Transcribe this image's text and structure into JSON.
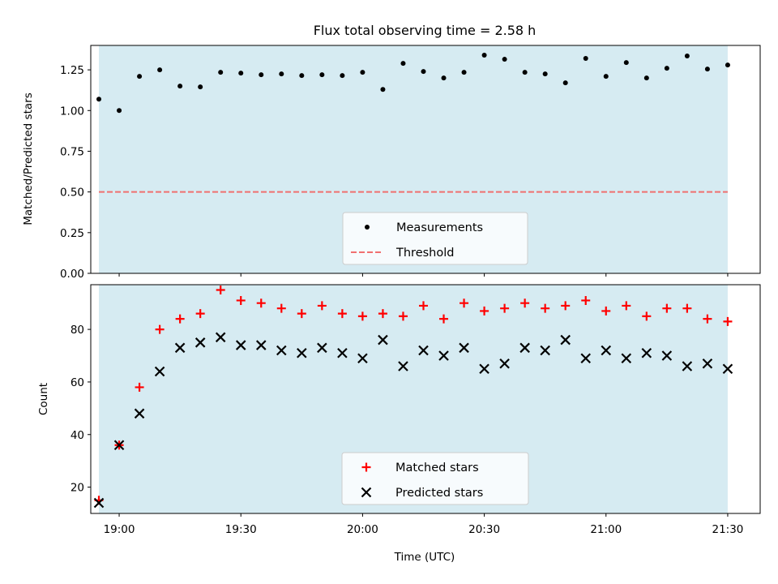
{
  "chart_data": [
    {
      "type": "scatter",
      "title": "Flux total observing time = 2.58 h",
      "xlabel": "",
      "ylabel": "Matched/Predicted stars",
      "xlim": [
        "18:53",
        "21:38"
      ],
      "ylim": [
        0,
        1.4
      ],
      "y_ticks": [
        "0.00",
        "0.25",
        "0.50",
        "0.75",
        "1.00",
        "1.25"
      ],
      "shaded_span": [
        "18:55",
        "21:30"
      ],
      "grid": false,
      "legend_position": "lower center",
      "series": [
        {
          "name": "Measurements",
          "marker": "dot",
          "color": "#000000",
          "x": [
            "18:55",
            "19:00",
            "19:05",
            "19:10",
            "19:15",
            "19:20",
            "19:25",
            "19:30",
            "19:35",
            "19:40",
            "19:45",
            "19:50",
            "19:55",
            "20:00",
            "20:05",
            "20:10",
            "20:15",
            "20:20",
            "20:25",
            "20:30",
            "20:35",
            "20:40",
            "20:45",
            "20:50",
            "20:55",
            "21:00",
            "21:05",
            "21:10",
            "21:15",
            "21:20",
            "21:25",
            "21:30"
          ],
          "y": [
            1.07,
            1.0,
            1.21,
            1.25,
            1.15,
            1.145,
            1.235,
            1.23,
            1.22,
            1.225,
            1.215,
            1.22,
            1.215,
            1.235,
            1.13,
            1.29,
            1.24,
            1.2,
            1.235,
            1.34,
            1.315,
            1.235,
            1.225,
            1.17,
            1.32,
            1.21,
            1.295,
            1.2,
            1.26,
            1.335,
            1.255,
            1.28
          ]
        },
        {
          "name": "Threshold",
          "line_style": "dashed",
          "color": "#f07070",
          "x": [
            "18:55",
            "21:30"
          ],
          "y": [
            0.5,
            0.5
          ]
        }
      ]
    },
    {
      "type": "scatter",
      "title": "",
      "xlabel": "Time (UTC)",
      "ylabel": "Count",
      "xlim": [
        "18:53",
        "21:38"
      ],
      "ylim": [
        10,
        97
      ],
      "x_ticks": [
        "19:00",
        "19:30",
        "20:00",
        "20:30",
        "21:00",
        "21:30"
      ],
      "y_ticks": [
        "20",
        "40",
        "60",
        "80"
      ],
      "shaded_span": [
        "18:55",
        "21:30"
      ],
      "grid": false,
      "legend_position": "lower center",
      "series": [
        {
          "name": "Matched stars",
          "marker": "plus",
          "color": "#ff0000",
          "x": [
            "18:55",
            "19:00",
            "19:05",
            "19:10",
            "19:15",
            "19:20",
            "19:25",
            "19:30",
            "19:35",
            "19:40",
            "19:45",
            "19:50",
            "19:55",
            "20:00",
            "20:05",
            "20:10",
            "20:15",
            "20:20",
            "20:25",
            "20:30",
            "20:35",
            "20:40",
            "20:45",
            "20:50",
            "20:55",
            "21:00",
            "21:05",
            "21:10",
            "21:15",
            "21:20",
            "21:25",
            "21:30"
          ],
          "y": [
            15,
            36,
            58,
            80,
            84,
            86,
            95,
            91,
            90,
            88,
            86,
            89,
            86,
            85,
            86,
            85,
            89,
            84,
            90,
            87,
            88,
            90,
            88,
            89,
            91,
            87,
            89,
            85,
            88,
            88,
            84,
            83
          ]
        },
        {
          "name": "Predicted stars",
          "marker": "x",
          "color": "#000000",
          "x": [
            "18:55",
            "19:00",
            "19:05",
            "19:10",
            "19:15",
            "19:20",
            "19:25",
            "19:30",
            "19:35",
            "19:40",
            "19:45",
            "19:50",
            "19:55",
            "20:00",
            "20:05",
            "20:10",
            "20:15",
            "20:20",
            "20:25",
            "20:30",
            "20:35",
            "20:40",
            "20:45",
            "20:50",
            "20:55",
            "21:00",
            "21:05",
            "21:10",
            "21:15",
            "21:20",
            "21:25",
            "21:30"
          ],
          "y": [
            14,
            36,
            48,
            64,
            73,
            75,
            77,
            74,
            74,
            72,
            71,
            73,
            71,
            69,
            76,
            66,
            72,
            70,
            73,
            65,
            67,
            73,
            72,
            76,
            69,
            72,
            69,
            71,
            70,
            66,
            67,
            65
          ]
        }
      ]
    }
  ]
}
